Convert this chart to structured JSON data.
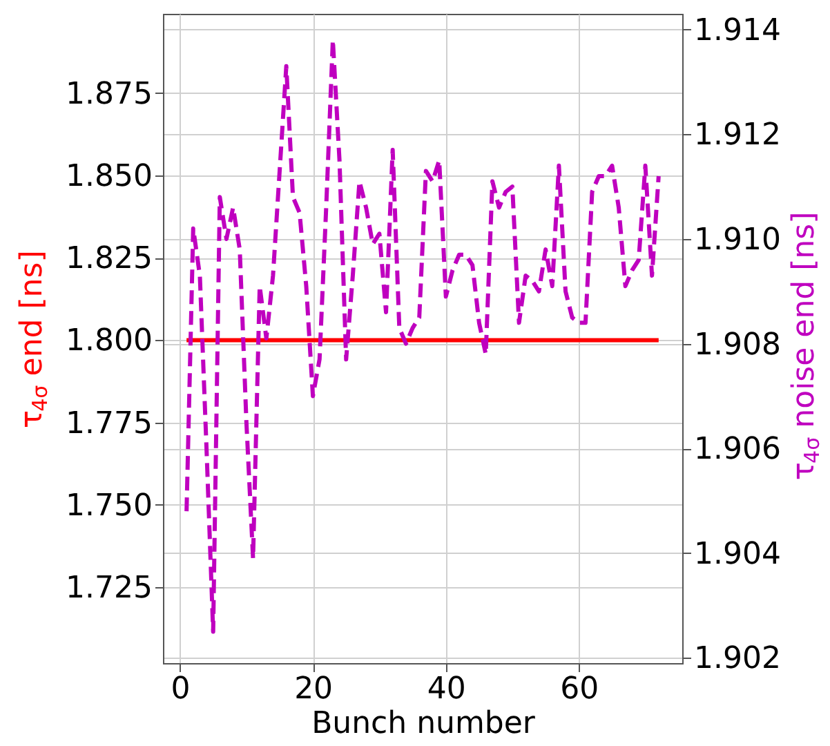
{
  "chart_data": {
    "type": "line",
    "xlabel": "Bunch number",
    "ylabel": "τ$_{4σ}$ end [ns]",
    "y2label": "τ$_{4σ}$ noise end [ns]",
    "xlim": [
      -2.55,
      75.55
    ],
    "xticks": [
      0,
      20,
      40,
      60
    ],
    "ylim": [
      1.702,
      1.899
    ],
    "yticks": [
      1.725,
      {
        "value": 1.75,
        "label": "1.750"
      },
      1.775,
      {
        "value": 1.8,
        "label": "1.800"
      },
      1.825,
      {
        "value": 1.85,
        "label": "1.850"
      },
      1.875
    ],
    "y2lim": [
      1.9019,
      1.9143
    ],
    "y2ticks": [
      1.902,
      1.904,
      1.906,
      1.908,
      {
        "value": 1.91,
        "label": "1.910"
      },
      1.912,
      1.914
    ],
    "grid": true,
    "series": [
      {
        "color": "#ff0000",
        "line_style": "solid",
        "x": [
          1,
          72
        ],
        "values": [
          1.8,
          1.8
        ]
      },
      {
        "color": "#bf00bf",
        "line_style": "dashed",
        "axis": "y2",
        "x": [
          1,
          2,
          3,
          4,
          5,
          6,
          7,
          8,
          9,
          10,
          11,
          12,
          13,
          14,
          15,
          16,
          17,
          18,
          19,
          20,
          21,
          22,
          23,
          24,
          25,
          26,
          27,
          28,
          29,
          30,
          31,
          32,
          33,
          34,
          35,
          36,
          37,
          38,
          39,
          40,
          41,
          42,
          43,
          44,
          45,
          46,
          47,
          48,
          49,
          50,
          51,
          52,
          53,
          54,
          55,
          56,
          57,
          58,
          59,
          60,
          61,
          62,
          63,
          64,
          65,
          66,
          67,
          68,
          69,
          70,
          71,
          72
        ],
        "values": [
          1.9048,
          1.9102,
          1.9093,
          1.906,
          1.9025,
          1.9108,
          1.91,
          1.9106,
          1.9098,
          1.9065,
          1.9039,
          1.9091,
          1.9081,
          1.9093,
          1.9113,
          1.9133,
          1.9108,
          1.9105,
          1.9091,
          1.907,
          1.9077,
          1.9106,
          1.9138,
          1.9115,
          1.9077,
          1.9093,
          1.9111,
          1.9106,
          1.9099,
          1.9101,
          1.9086,
          1.9117,
          1.9083,
          1.908,
          1.9083,
          1.9085,
          1.9113,
          1.9111,
          1.9115,
          1.9089,
          1.9094,
          1.9097,
          1.9097,
          1.9095,
          1.9084,
          1.9078,
          1.9111,
          1.9106,
          1.9109,
          1.911,
          1.9084,
          1.9093,
          1.9092,
          1.909,
          1.9098,
          1.9091,
          1.9114,
          1.909,
          1.9085,
          1.9084,
          1.9084,
          1.9109,
          1.9112,
          1.9112,
          1.9114,
          1.9106,
          1.9091,
          1.9094,
          1.9096,
          1.9114,
          1.9093,
          1.9112
        ]
      }
    ]
  }
}
